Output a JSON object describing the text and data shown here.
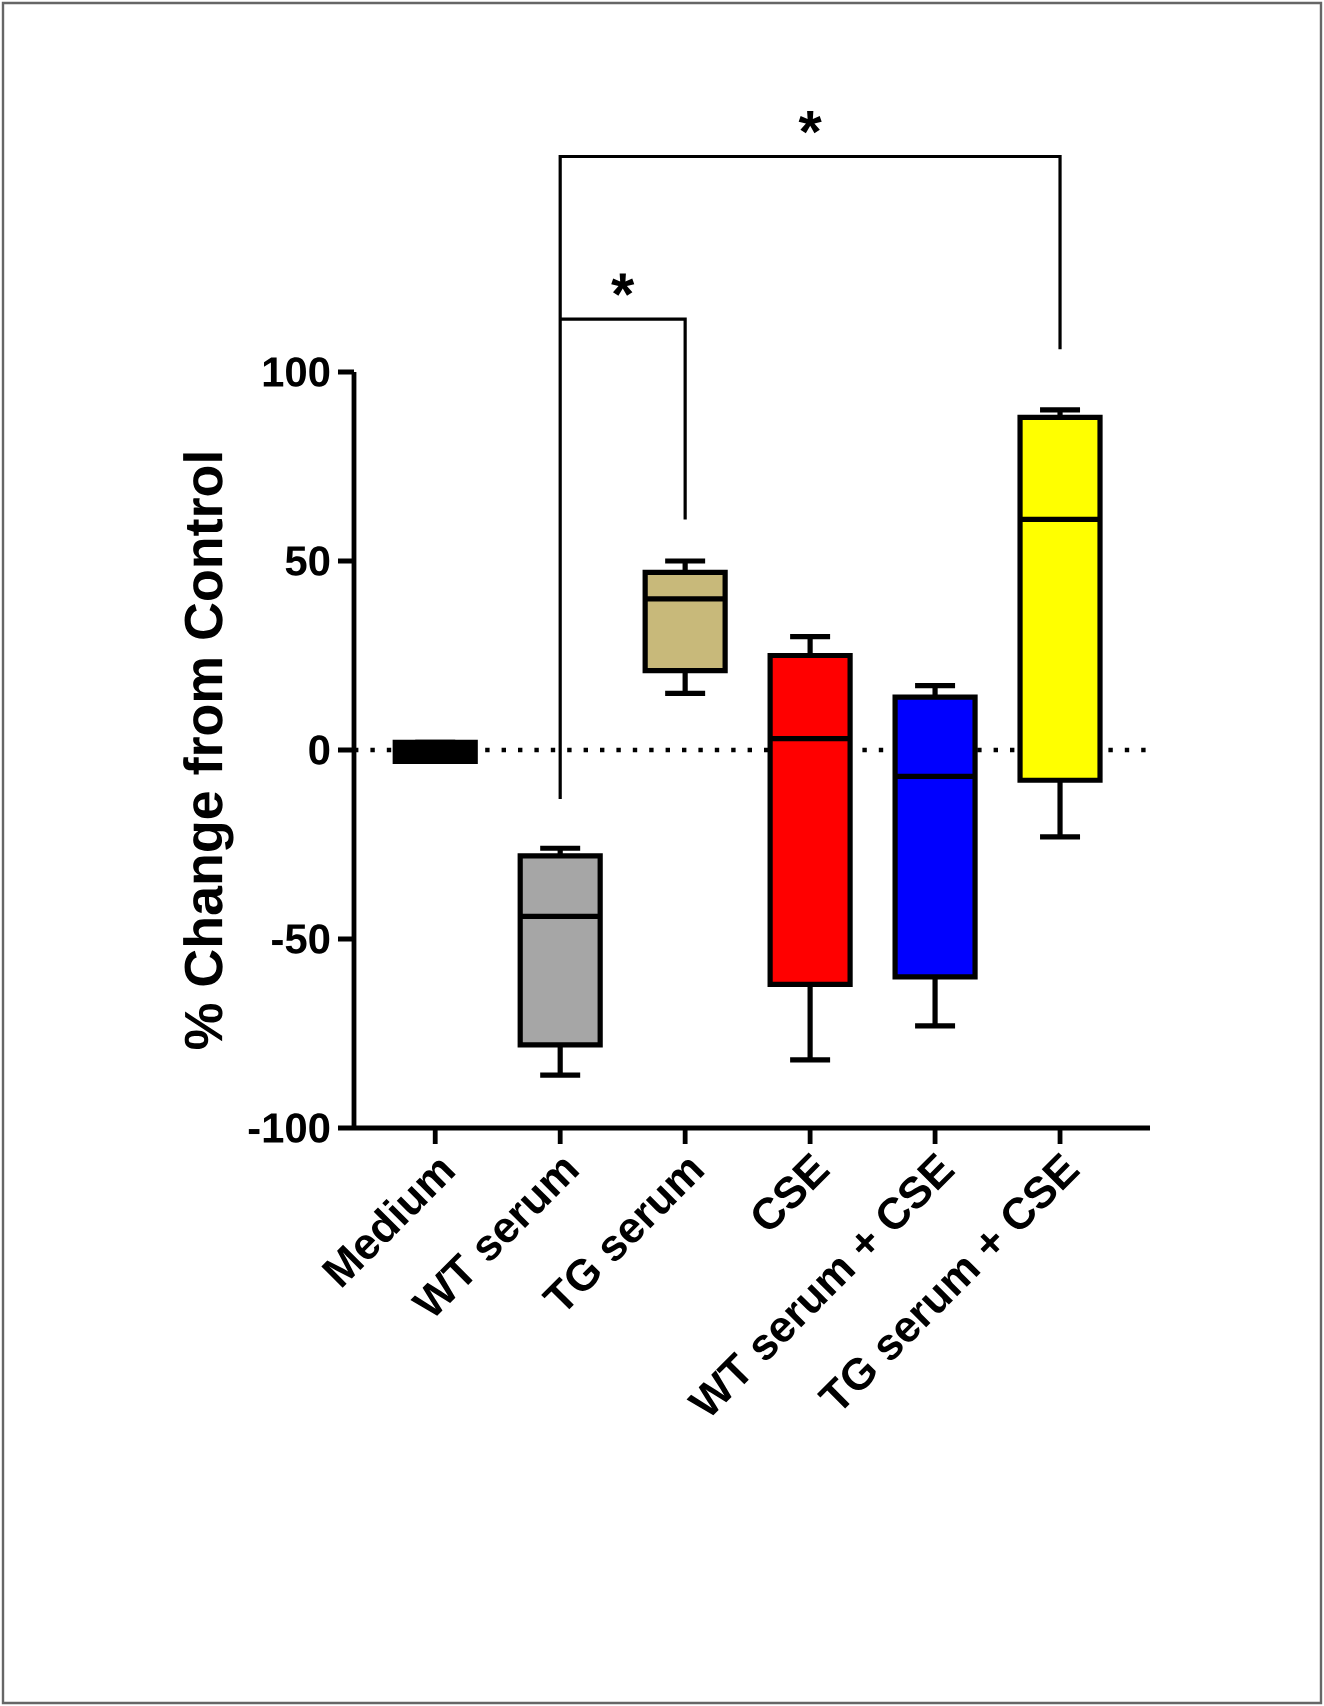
{
  "chart_data": {
    "type": "box",
    "ylabel": "% Change from Control",
    "categories": [
      "Medium",
      "WT serum",
      "TG serum",
      "CSE",
      "WT serum + CSE",
      "TG serum + CSE"
    ],
    "colors": [
      "#000000",
      "#a6a6a6",
      "#c8b97a",
      "#ff0000",
      "#0000ff",
      "#ffff00"
    ],
    "boxes": [
      {
        "low": -3,
        "q1": -3,
        "median": -1,
        "q3": 2,
        "high": 2
      },
      {
        "low": -86,
        "q1": -78,
        "median": -44,
        "q3": -28,
        "high": -26
      },
      {
        "low": 15,
        "q1": 21,
        "median": 40,
        "q3": 47,
        "high": 50
      },
      {
        "low": -82,
        "q1": -62,
        "median": 3,
        "q3": 25,
        "high": 30
      },
      {
        "low": -73,
        "q1": -60,
        "median": -7,
        "q3": 14,
        "high": 17
      },
      {
        "low": -23,
        "q1": -8,
        "median": 61,
        "q3": 88,
        "high": 90
      }
    ],
    "ylim": [
      -100,
      100
    ],
    "yticks": [
      -100,
      -50,
      0,
      50,
      100
    ],
    "ref_lines": [
      {
        "axis": "y",
        "value": 0,
        "line_style": "dotted",
        "color": "#000000"
      }
    ],
    "annotations": [
      "*",
      "*"
    ]
  }
}
